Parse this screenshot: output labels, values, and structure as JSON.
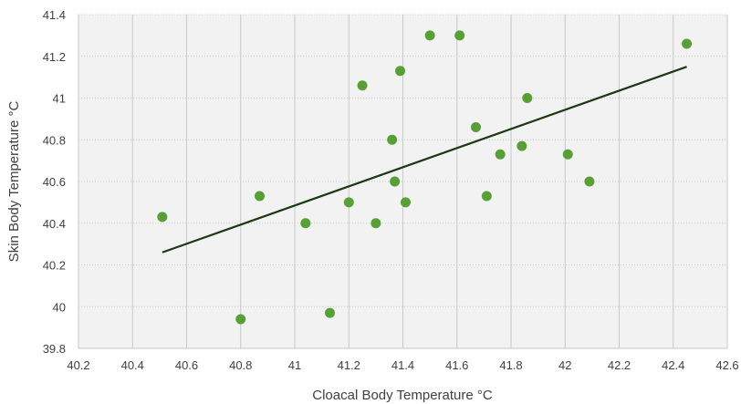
{
  "chart_data": {
    "type": "scatter",
    "xlabel": "Cloacal Body Temperature °C",
    "ylabel": "Skin Body Temperature °C",
    "xlim": [
      40.2,
      42.6
    ],
    "ylim": [
      39.8,
      41.4
    ],
    "xticks": [
      "40.2",
      "40.4",
      "40.6",
      "40.8",
      "41",
      "41.2",
      "41.4",
      "41.6",
      "41.8",
      "42",
      "42.2",
      "42.4",
      "42.6"
    ],
    "yticks": [
      "39.8",
      "40",
      "40.2",
      "40.4",
      "40.6",
      "40.8",
      "41",
      "41.2",
      "41.4"
    ],
    "grid": true,
    "legend": "none",
    "series": [
      {
        "points": [
          {
            "x": 40.51,
            "y": 40.43
          },
          {
            "x": 40.8,
            "y": 39.94
          },
          {
            "x": 40.87,
            "y": 40.53
          },
          {
            "x": 41.04,
            "y": 40.4
          },
          {
            "x": 41.13,
            "y": 39.97
          },
          {
            "x": 41.2,
            "y": 40.5
          },
          {
            "x": 41.25,
            "y": 41.06
          },
          {
            "x": 41.3,
            "y": 40.4
          },
          {
            "x": 41.36,
            "y": 40.8
          },
          {
            "x": 41.37,
            "y": 40.6
          },
          {
            "x": 41.39,
            "y": 41.13
          },
          {
            "x": 41.41,
            "y": 40.5
          },
          {
            "x": 41.5,
            "y": 41.3
          },
          {
            "x": 41.61,
            "y": 41.3
          },
          {
            "x": 41.67,
            "y": 40.86
          },
          {
            "x": 41.71,
            "y": 40.53
          },
          {
            "x": 41.76,
            "y": 40.73
          },
          {
            "x": 41.84,
            "y": 40.77
          },
          {
            "x": 41.86,
            "y": 41.0
          },
          {
            "x": 42.01,
            "y": 40.73
          },
          {
            "x": 42.09,
            "y": 40.6
          },
          {
            "x": 42.45,
            "y": 41.26
          }
        ]
      }
    ],
    "trendline": {
      "type": "linear",
      "x": [
        40.51,
        42.45
      ],
      "y": [
        40.26,
        41.15
      ]
    }
  },
  "colors": {
    "point": "#56a035",
    "trendline": "#1b3a12",
    "plot_background": "#f2f2f2",
    "grid": "#c8c8c8"
  }
}
